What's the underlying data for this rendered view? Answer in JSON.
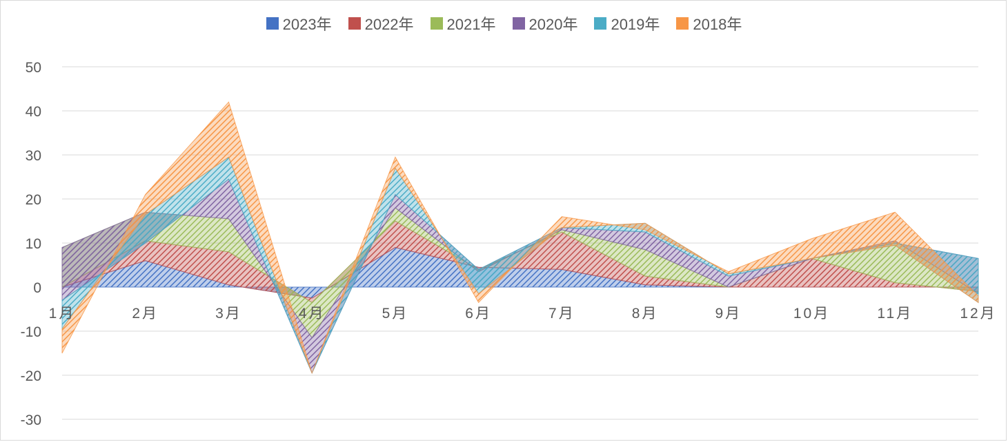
{
  "chart_data": {
    "type": "area",
    "stacked": true,
    "title": "",
    "xlabel": "",
    "ylabel": "",
    "categories": [
      "1月",
      "2月",
      "3月",
      "4月",
      "5月",
      "6月",
      "7月",
      "8月",
      "9月",
      "10月",
      "11月",
      "12月"
    ],
    "ylim": [
      -30,
      50
    ],
    "yticks": [
      50,
      40,
      30,
      20,
      10,
      0,
      -10,
      -20,
      -30
    ],
    "grid": true,
    "legend_position": "top",
    "series": [
      {
        "name": "2023年",
        "color": "#4472C4",
        "values": [
          0,
          6,
          0.5,
          -2.5,
          9,
          4.5,
          4,
          0.5,
          0,
          0,
          0,
          0
        ]
      },
      {
        "name": "2022年",
        "color": "#ED7D31",
        "values": [
          0,
          4.5,
          7.5,
          -1,
          6,
          -0.5,
          8.5,
          2,
          0,
          6.5,
          1,
          -1
        ]
      },
      {
        "name": "2021年",
        "color": "#A5A5A5",
        "values": [
          9,
          6.5,
          7.5,
          -8,
          3,
          -0.5,
          0.5,
          6,
          0,
          0,
          9.5,
          -0.5
        ]
      },
      {
        "name": "2020年",
        "color": "#FFC000",
        "values": [
          -12,
          -7,
          9,
          -8,
          3,
          0.5,
          0.5,
          4,
          2.5,
          0,
          -0.5,
          8
        ]
      },
      {
        "name": "2019年",
        "color": "#5B9BD5",
        "values": [
          -6.5,
          6.5,
          5,
          0,
          6,
          -5.5,
          0,
          2,
          0.5,
          0,
          -0.5,
          -10
        ]
      },
      {
        "name": "2018年",
        "color": "#70AD47",
        "values": [
          -5.5,
          4.5,
          12.5,
          0,
          2.5,
          -2,
          2.5,
          -1.5,
          0.5,
          4.5,
          7.5,
          1.5
        ]
      }
    ]
  },
  "styles": {
    "series_colors": [
      "#4472C4",
      "#C0504D",
      "#9BBB59",
      "#8064A2",
      "#4BACC6",
      "#F79646"
    ],
    "grid_color": "#d9d9d9",
    "text_color": "#595959"
  }
}
